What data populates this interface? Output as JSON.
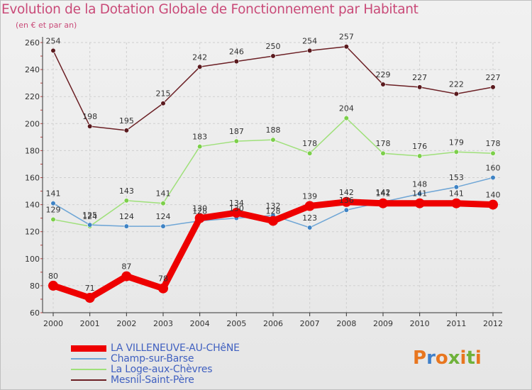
{
  "title": "Evolution de la Dotation Globale de Fonctionnement par Habitant",
  "subtitle": "(en € et par an)",
  "logo_text": "Proxiti",
  "colors": {
    "title": "#c94a78",
    "axis": "#333333",
    "grid": "#cccccc",
    "legend_text": "#4060c0"
  },
  "chart_data": {
    "type": "line",
    "title": "Evolution de la Dotation Globale de Fonctionnement par Habitant",
    "subtitle": "(en € et par an)",
    "xlabel": "",
    "ylabel": "",
    "x": [
      "2000",
      "2001",
      "2002",
      "2003",
      "2004",
      "2005",
      "2006",
      "2007",
      "2008",
      "2009",
      "2010",
      "2011",
      "2012"
    ],
    "ylim": [
      60,
      260
    ],
    "yticks": [
      60,
      80,
      100,
      120,
      140,
      160,
      180,
      200,
      220,
      240,
      260
    ],
    "grid": true,
    "legend_position": "bottom-left",
    "series": [
      {
        "name": "Mesnil-Saint-Père",
        "color": "#6b1f24",
        "marker": "#5a1a1e",
        "values": [
          254,
          198,
          195,
          215,
          242,
          246,
          250,
          254,
          257,
          229,
          227,
          222,
          227
        ],
        "labels": [
          "254",
          "198",
          "195",
          "215",
          "242",
          "246",
          "250",
          "254",
          "257",
          "229",
          "227",
          "222",
          "227"
        ]
      },
      {
        "name": "La Loge-aux-Chèvres",
        "color": "#9fe07a",
        "marker": "#7ccf4a",
        "values": [
          129,
          124,
          143,
          141,
          183,
          187,
          188,
          178,
          204,
          178,
          176,
          179,
          178
        ],
        "labels": [
          "129",
          "124",
          "143",
          "141",
          "183",
          "187",
          "188",
          "178",
          "204",
          "178",
          "176",
          "179",
          "178"
        ]
      },
      {
        "name": "Champ-sur-Barse",
        "color": "#6fa6d6",
        "marker": "#3f83c4",
        "values": [
          141,
          125,
          124,
          124,
          128,
          130,
          132,
          123,
          136,
          142,
          148,
          153,
          160
        ],
        "labels": [
          "141",
          "125",
          "124",
          "124",
          "128",
          "130",
          "132",
          "123",
          "136",
          "142",
          "148",
          "153",
          "160"
        ]
      },
      {
        "name": "LA VILLENEUVE-AU-CHêNE",
        "color": "#ee0000",
        "marker": "#ee0000",
        "values": [
          80,
          71,
          87,
          78,
          130,
          134,
          128,
          139,
          142,
          141,
          141,
          141,
          140
        ],
        "labels": [
          "80",
          "71",
          "87",
          "78",
          "130",
          "134",
          "128",
          "139",
          "142",
          "141",
          "141",
          "141",
          "140"
        ]
      }
    ]
  },
  "legend": [
    {
      "label": "LA VILLENEUVE-AU-CHêNE",
      "color": "#ee0000",
      "width": 9
    },
    {
      "label": "Champ-sur-Barse",
      "color": "#6fa6d6",
      "width": 2
    },
    {
      "label": "La Loge-aux-Chèvres",
      "color": "#9fe07a",
      "width": 2
    },
    {
      "label": "Mesnil-Saint-Père",
      "color": "#6b1f24",
      "width": 2
    }
  ]
}
